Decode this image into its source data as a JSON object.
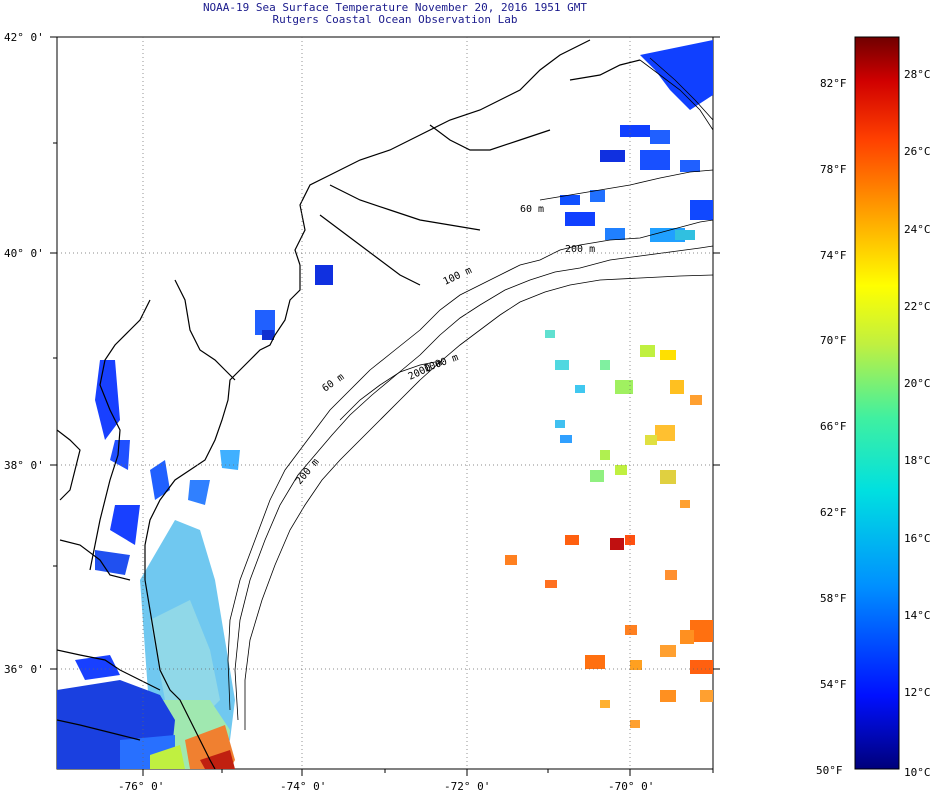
{
  "header": {
    "title": "NOAA-19 Sea Surface Temperature November 20, 2016 1951 GMT",
    "subtitle": "Rutgers Coastal Ocean Observation Lab"
  },
  "map": {
    "lat_labels": [
      "42° 0'",
      "40° 0'",
      "38° 0'",
      "36° 0'"
    ],
    "lon_labels": [
      "-76° 0'",
      "-74° 0'",
      "-72° 0'",
      "-70° 0'"
    ],
    "contour_labels": [
      "60 m",
      "100 m",
      "200 m",
      "1000 m",
      "2000 m",
      "60 m",
      "200 m"
    ],
    "land_color": "#ffffff",
    "coast_color": "#000000"
  },
  "colorbar": {
    "fahrenheit_labels": [
      "82°F",
      "78°F",
      "74°F",
      "70°F",
      "66°F",
      "62°F",
      "58°F",
      "54°F",
      "50°F"
    ],
    "celsius_labels": [
      "28°C",
      "26°C",
      "24°C",
      "22°C",
      "20°C",
      "18°C",
      "16°C",
      "14°C",
      "12°C",
      "10°C"
    ],
    "colors": [
      "#7a0000",
      "#d40000",
      "#ff4000",
      "#ff9000",
      "#ffe000",
      "#b0f040",
      "#40e8a0",
      "#00d8e0",
      "#0090ff",
      "#0030ff",
      "#0000a0"
    ]
  }
}
